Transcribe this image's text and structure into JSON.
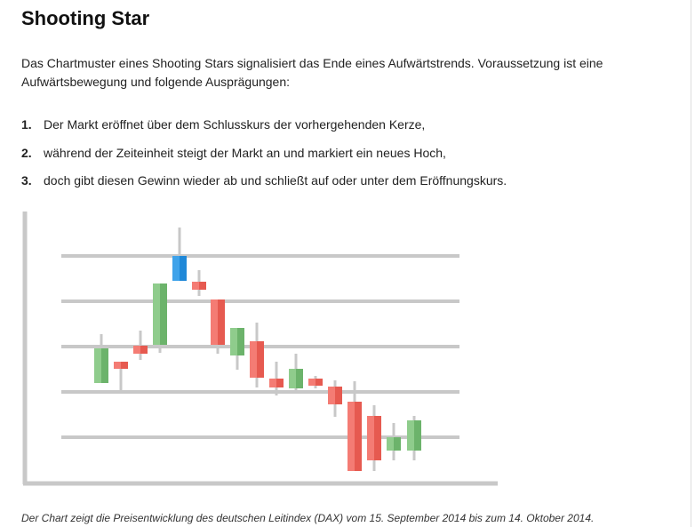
{
  "header": {
    "title": "Shooting Star"
  },
  "intro": "Das Chartmuster eines Shooting Stars signalisiert das Ende eines Aufwärtstrends. Voraussetzung ist eine Aufwärtsbewegung und folgende Ausprägungen:",
  "list": [
    {
      "number": "1.",
      "text": "Der Markt eröffnet über dem Schlusskurs der vorhergehenden Kerze,"
    },
    {
      "number": "2.",
      "text": "während der Zeiteinheit steigt der Markt an und markiert ein neues Hoch,"
    },
    {
      "number": "3.",
      "text": "doch gibt diesen Gewinn wieder ab und schließt auf oder unter dem Eröffnungskurs."
    }
  ],
  "caption": "Der Chart zeigt die Preisentwicklung des deutschen Leitindex (DAX) vom 15. September 2014 bis zum 14. Oktober 2014."
}
